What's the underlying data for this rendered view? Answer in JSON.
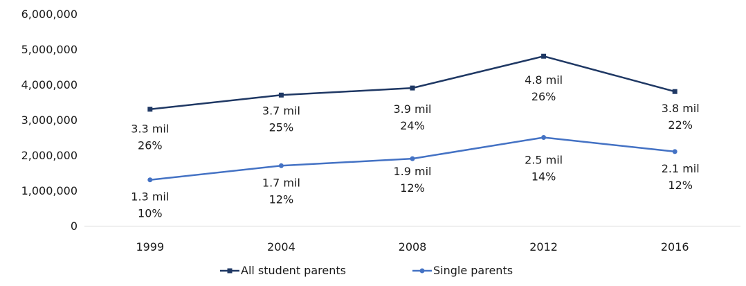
{
  "chart_data": {
    "type": "line",
    "title": "",
    "xlabel": "",
    "ylabel": "",
    "categories": [
      "1999",
      "2004",
      "2008",
      "2012",
      "2016"
    ],
    "ylim": [
      0,
      6000000
    ],
    "yticks": [
      0,
      1000000,
      2000000,
      3000000,
      4000000,
      5000000,
      6000000
    ],
    "ytick_labels": [
      "0",
      "1,000,000",
      "2,000,000",
      "3,000,000",
      "4,000,000",
      "5,000,000",
      "6,000,000"
    ],
    "grid": false,
    "legend_position": "bottom",
    "series": [
      {
        "name": "All student parents",
        "color": "#1f3864",
        "marker": "square",
        "values": [
          3300000,
          3700000,
          3900000,
          4800000,
          3800000
        ],
        "labels": [
          [
            "3.3 mil",
            "26%"
          ],
          [
            "3.7 mil",
            "25%"
          ],
          [
            "3.9 mil",
            "24%"
          ],
          [
            "4.8 mil",
            "26%"
          ],
          [
            "3.8 mil",
            "22%"
          ]
        ]
      },
      {
        "name": "Single parents",
        "color": "#4472c4",
        "marker": "circle",
        "values": [
          1300000,
          1700000,
          1900000,
          2500000,
          2100000
        ],
        "labels": [
          [
            "1.3 mil",
            "10%"
          ],
          [
            "1.7 mil",
            "12%"
          ],
          [
            "1.9 mil",
            "12%"
          ],
          [
            "2.5 mil",
            "14%"
          ],
          [
            "2.1 mil",
            "12%"
          ]
        ]
      }
    ]
  }
}
